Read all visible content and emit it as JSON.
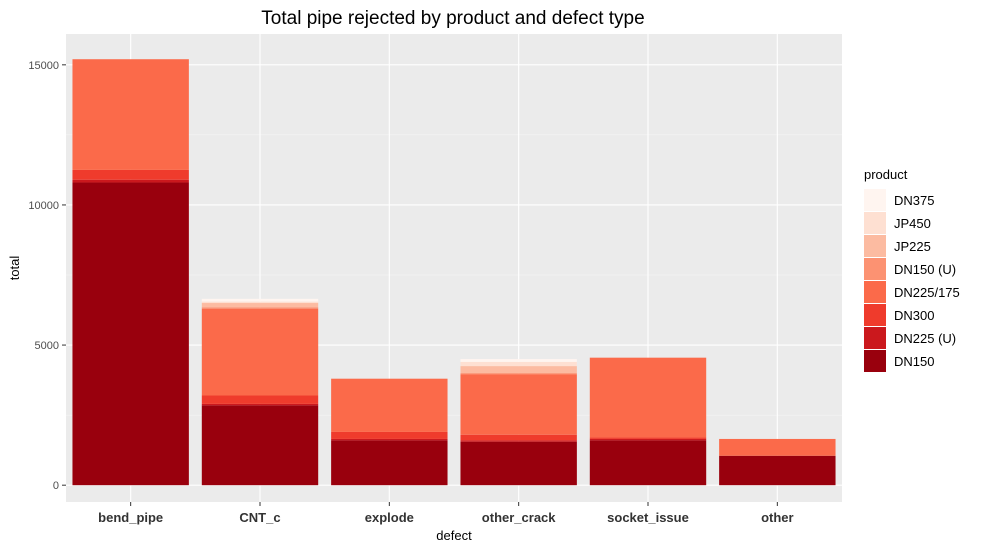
{
  "chart_data": {
    "type": "bar",
    "stacked": true,
    "title": "Total pipe rejected by product and defect type",
    "xlabel": "defect",
    "ylabel": "total",
    "ylim": [
      -600,
      16100
    ],
    "yticks": [
      0,
      5000,
      10000,
      15000
    ],
    "grid": true,
    "legend": {
      "title": "product",
      "placement": "right"
    },
    "categories": [
      "bend_pipe",
      "CNT_c",
      "explode",
      "other_crack",
      "socket_issue",
      "other"
    ],
    "series": [
      {
        "name": "DN150",
        "color": "#99000D",
        "values": [
          10800,
          2850,
          1600,
          1550,
          1600,
          1050
        ]
      },
      {
        "name": "DN225 (U)",
        "color": "#CB181D",
        "values": [
          100,
          50,
          50,
          50,
          50,
          0
        ]
      },
      {
        "name": "DN300",
        "color": "#EF3B2C",
        "values": [
          350,
          300,
          250,
          200,
          50,
          0
        ]
      },
      {
        "name": "DN225/175",
        "color": "#FB6A4A",
        "values": [
          3950,
          3100,
          1900,
          2150,
          2850,
          600
        ]
      },
      {
        "name": "DN150 (U)",
        "color": "#FC9272",
        "values": [
          0,
          50,
          0,
          50,
          0,
          0
        ]
      },
      {
        "name": "JP225",
        "color": "#FCBBA1",
        "values": [
          0,
          150,
          0,
          250,
          0,
          0
        ]
      },
      {
        "name": "JP450",
        "color": "#FEE0D2",
        "values": [
          0,
          50,
          0,
          150,
          0,
          0
        ]
      },
      {
        "name": "DN375",
        "color": "#FFF5F0",
        "values": [
          0,
          100,
          0,
          100,
          0,
          0
        ]
      }
    ],
    "legend_order": [
      "DN375",
      "JP450",
      "JP225",
      "DN150 (U)",
      "DN225/175",
      "DN300",
      "DN225 (U)",
      "DN150"
    ]
  }
}
